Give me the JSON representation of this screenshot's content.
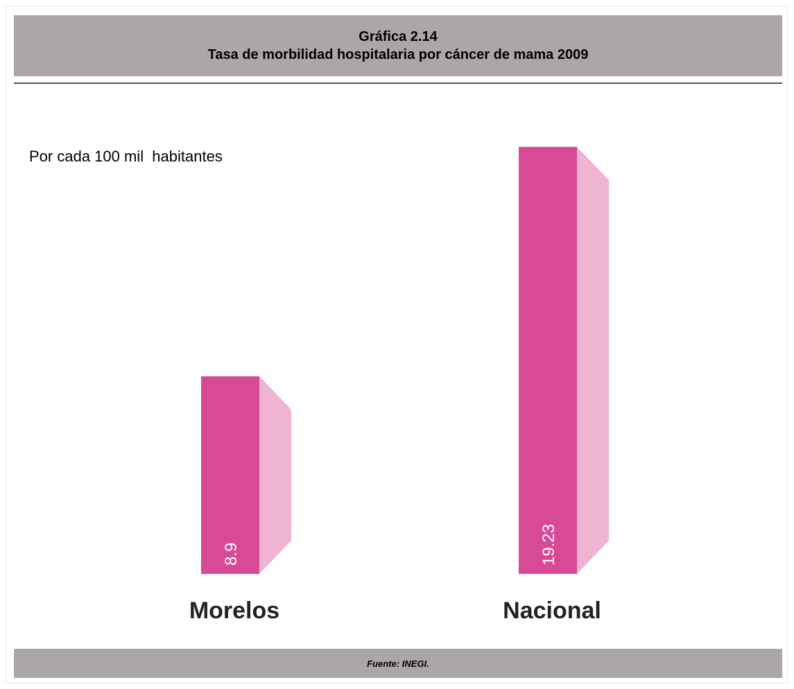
{
  "chart_data": {
    "type": "bar",
    "title": "Gráfica 2.14",
    "subtitle": "Tasa de morbilidad hospitalaria por cáncer de mama 2009",
    "ylabel": "Por cada 100 mil  habitantes",
    "categories": [
      "Morelos",
      "Nacional"
    ],
    "values": [
      8.9,
      19.23
    ],
    "value_labels": [
      "8.9",
      "19.23"
    ],
    "ylim": [
      0,
      19.6
    ],
    "grid": false,
    "colors": {
      "front": "#d94a96",
      "side": "#f0b4d3"
    }
  },
  "source": "Fuente: INEGI."
}
